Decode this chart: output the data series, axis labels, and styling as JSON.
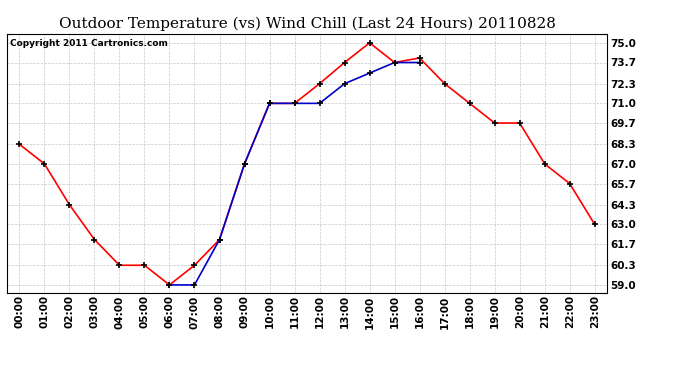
{
  "title": "Outdoor Temperature (vs) Wind Chill (Last 24 Hours) 20110828",
  "copyright": "Copyright 2011 Cartronics.com",
  "x_labels": [
    "00:00",
    "01:00",
    "02:00",
    "03:00",
    "04:00",
    "05:00",
    "06:00",
    "07:00",
    "08:00",
    "09:00",
    "10:00",
    "11:00",
    "12:00",
    "13:00",
    "14:00",
    "15:00",
    "16:00",
    "17:00",
    "18:00",
    "19:00",
    "20:00",
    "21:00",
    "22:00",
    "23:00"
  ],
  "temp_red": [
    68.3,
    67.0,
    64.3,
    62.0,
    60.3,
    60.3,
    59.0,
    60.3,
    62.0,
    67.0,
    71.0,
    71.0,
    72.3,
    73.7,
    75.0,
    73.7,
    74.0,
    72.3,
    71.0,
    69.7,
    69.7,
    67.0,
    65.7,
    63.0
  ],
  "wind_chill_blue": [
    null,
    null,
    null,
    null,
    null,
    null,
    59.0,
    59.0,
    62.0,
    67.0,
    71.0,
    71.0,
    71.0,
    72.3,
    73.0,
    73.7,
    73.7,
    null,
    null,
    null,
    null,
    null,
    null,
    null
  ],
  "y_ticks": [
    59.0,
    60.3,
    61.7,
    63.0,
    64.3,
    65.7,
    67.0,
    68.3,
    69.7,
    71.0,
    72.3,
    73.7,
    75.0
  ],
  "ylim": [
    58.5,
    75.6
  ],
  "bg_color": "#ffffff",
  "plot_bg_color": "#ffffff",
  "grid_color": "#c8c8c8",
  "red_color": "#ff0000",
  "blue_color": "#0000cc",
  "title_fontsize": 11,
  "tick_fontsize": 7.5,
  "copyright_fontsize": 6.5
}
